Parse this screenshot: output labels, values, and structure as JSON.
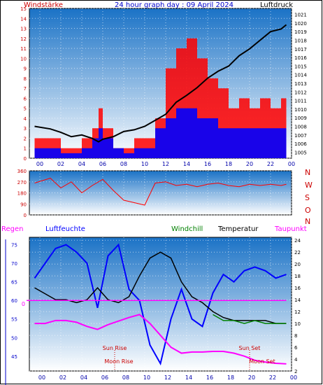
{
  "header": {
    "left_label": "Windstärke",
    "title": "24 hour graph day : 09 April 2024",
    "right_label": "Luftdruck"
  },
  "colors": {
    "gust": "#ff0000",
    "wind": "#0000ff",
    "pressure": "#000000",
    "direction": "#ff0000",
    "humidity": "#0000ff",
    "windchill": "#008000",
    "temperature": "#000000",
    "dewpoint": "#ff00ff",
    "rain": "#ff00ff",
    "axis_text": "#0000aa",
    "bg_top": "#1a72c6",
    "bg_bottom": "#ffffff"
  },
  "time_ticks": [
    "00",
    "02",
    "04",
    "06",
    "08",
    "10",
    "12",
    "14",
    "16",
    "18",
    "20",
    "22",
    "00"
  ],
  "direction_labels": [
    "N",
    "W",
    "S",
    "O",
    "N"
  ],
  "bottom_legend": {
    "rain": "Regen",
    "humidity": "Luftfeuchte",
    "windchill": "Windchill",
    "temperature": "Temperatur",
    "dewpoint": "Taupunkt"
  },
  "annotations": {
    "sun_rise": "Sun Rise",
    "moon_rise": "Moon Rise",
    "sun_set": "Sun Set",
    "moon_set": "Moon Set",
    "rain_zero": "0"
  },
  "chart_data": [
    {
      "type": "bar",
      "title": "24 hour graph day : 09 April 2024",
      "ylabel": "Windstärke",
      "y2label": "Luftdruck",
      "ylim": [
        0,
        15
      ],
      "y_ticks": [
        0,
        1,
        2,
        3,
        4,
        5,
        6,
        7,
        8,
        9,
        10,
        11,
        12,
        13,
        14,
        15
      ],
      "y2lim": [
        1004.3,
        1021.7
      ],
      "y2_ticks": [
        1005,
        1006,
        1007,
        1008,
        1009,
        1010,
        1011,
        1012,
        1013,
        1014,
        1015,
        1016,
        1017,
        1018,
        1019,
        1020,
        1021
      ],
      "x_hours": [
        -0.5,
        1,
        2,
        3,
        4,
        5,
        5.6,
        6,
        7,
        8,
        9,
        10,
        11,
        12,
        13,
        14,
        15,
        16,
        17,
        18,
        19,
        20,
        21,
        22,
        23,
        23.5
      ],
      "series": [
        {
          "name": "Luftdruck",
          "values": [
            1008,
            1007.7,
            1007.3,
            1006.8,
            1007,
            1006.6,
            1006.2,
            1006.5,
            1006.8,
            1007.4,
            1007.6,
            1008,
            1008.7,
            1009.4,
            1010.8,
            1011.6,
            1012.5,
            1013.6,
            1014.4,
            1015,
            1016.2,
            1017,
            1018,
            1019,
            1019.3,
            1019.8
          ]
        },
        {
          "name": "gust",
          "values": [
            2,
            2,
            1,
            1,
            2,
            3,
            5,
            3,
            1,
            1,
            2,
            2,
            4,
            9,
            11,
            12,
            10,
            8,
            7,
            5,
            6,
            5,
            6,
            5,
            6,
            5
          ]
        },
        {
          "name": "wind",
          "values": [
            1,
            1,
            0.5,
            0.5,
            1,
            2,
            3,
            2,
            1,
            0.5,
            1,
            1,
            3,
            4,
            5,
            5,
            4,
            4,
            3,
            3,
            3,
            3,
            3,
            3,
            3,
            3
          ]
        }
      ]
    },
    {
      "type": "line",
      "ylabel": "",
      "ylim": [
        0,
        360
      ],
      "y_ticks": [
        0,
        90,
        180,
        270,
        360
      ],
      "x_hours": [
        -0.5,
        1,
        2,
        3,
        4,
        5,
        6,
        7,
        8,
        9,
        10,
        11,
        12,
        13,
        14,
        15,
        16,
        17,
        18,
        19,
        20,
        21,
        22,
        23,
        23.5
      ],
      "series": [
        {
          "name": "direction",
          "values": [
            260,
            300,
            220,
            270,
            180,
            240,
            290,
            200,
            120,
            100,
            80,
            260,
            270,
            240,
            250,
            230,
            250,
            260,
            240,
            230,
            250,
            240,
            250,
            240,
            250
          ]
        }
      ]
    },
    {
      "type": "line",
      "ylim_left": [
        41,
        77
      ],
      "y_ticks_left": [
        45,
        50,
        55,
        60,
        65,
        70,
        75
      ],
      "ylim_right": [
        2,
        24.5
      ],
      "y_ticks_right": [
        2,
        4,
        6,
        8,
        10,
        12,
        14,
        16,
        18,
        20,
        22,
        24
      ],
      "x_hours": [
        -0.5,
        0.5,
        1.5,
        2.5,
        3.5,
        4.5,
        5.5,
        6.5,
        7.5,
        8.5,
        9.5,
        10.5,
        11.5,
        12.5,
        13.5,
        14.5,
        15.5,
        16.5,
        17.5,
        18.5,
        19.5,
        20.5,
        21.5,
        22.5,
        23.5
      ],
      "series": [
        {
          "name": "Luftfeuchte",
          "axis": "left",
          "values": [
            66,
            70,
            74,
            75,
            73,
            70,
            58,
            72,
            75,
            63,
            60,
            48,
            43,
            55,
            63,
            55,
            53,
            62,
            67,
            65,
            68,
            69,
            68,
            66,
            67
          ]
        },
        {
          "name": "Temperatur",
          "axis": "right",
          "values": [
            16,
            15,
            14,
            14,
            13.5,
            14,
            16,
            14,
            13.5,
            14.5,
            18,
            21,
            22,
            21,
            17,
            14.5,
            13.5,
            12,
            11,
            10.5,
            10.5,
            10.5,
            10.5,
            10,
            10
          ]
        },
        {
          "name": "Windchill",
          "axis": "right",
          "values": [
            null,
            null,
            null,
            null,
            null,
            null,
            null,
            null,
            null,
            null,
            null,
            null,
            null,
            null,
            null,
            null,
            null,
            11.5,
            10.5,
            10.5,
            10,
            10.5,
            10,
            10,
            10
          ]
        },
        {
          "name": "Taupunkt",
          "axis": "right",
          "values": [
            10,
            10,
            10.5,
            10.5,
            10.2,
            9.5,
            9,
            9.8,
            10.4,
            11,
            11.5,
            10,
            8,
            6,
            5,
            5.2,
            5.2,
            5.3,
            5.3,
            5,
            4.5,
            3.8,
            3.5,
            3.3,
            3.2
          ]
        },
        {
          "name": "Regen",
          "axis": "left",
          "values": [
            60,
            60,
            60,
            60,
            60,
            60,
            60,
            60,
            60,
            60,
            60,
            60,
            60,
            60,
            60,
            60,
            60,
            60,
            60,
            60,
            60,
            60,
            60,
            60,
            60
          ]
        }
      ]
    }
  ]
}
